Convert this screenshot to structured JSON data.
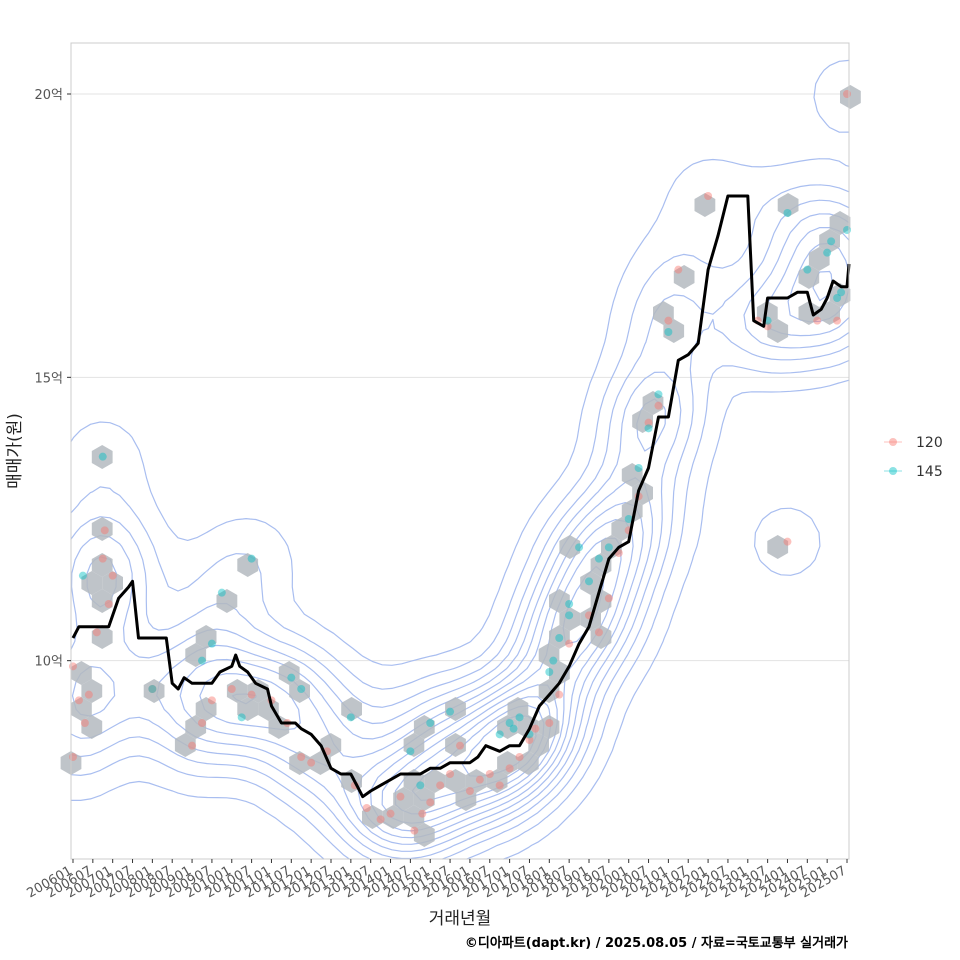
{
  "chart_data": {
    "type": "scatter",
    "xlabel": "거래년월",
    "ylabel": "매매가(원)",
    "x_tick_labels": [
      "200601",
      "200607",
      "200701",
      "200707",
      "200801",
      "200807",
      "200901",
      "200907",
      "201001",
      "201007",
      "201101",
      "201107",
      "201201",
      "201207",
      "201301",
      "201307",
      "201401",
      "201407",
      "201501",
      "201507",
      "201601",
      "201607",
      "201701",
      "201707",
      "201801",
      "201807",
      "201901",
      "201907",
      "202001",
      "202007",
      "202101",
      "202107",
      "202201",
      "202207",
      "202301",
      "202307",
      "202401",
      "202407",
      "202501",
      "202507"
    ],
    "y_ticks": [
      {
        "value": 10,
        "label": "10억"
      },
      {
        "value": 15,
        "label": "15억"
      },
      {
        "value": 20,
        "label": "20억"
      }
    ],
    "xlim": [
      -0.1,
      39.1
    ],
    "ylim": [
      6.5,
      20.9
    ],
    "grid": "horizontal major lines",
    "legend_position": "right",
    "colors": {
      "s120": "#F8766D",
      "s145": "#00BFC4",
      "trend": "#000000",
      "hex": "#B4BAC0",
      "contour": "#A9BEF0",
      "grid": "#E3E3E3",
      "frame": "#CCCCCC"
    },
    "series": [
      {
        "name": "120",
        "color": "#F8766D",
        "points": [
          [
            0,
            8.3
          ],
          [
            0,
            9.9
          ],
          [
            0.3,
            9.3
          ],
          [
            0.6,
            8.9
          ],
          [
            0.8,
            9.4
          ],
          [
            1.2,
            10.5
          ],
          [
            1.5,
            11.8
          ],
          [
            1.6,
            12.3
          ],
          [
            1.8,
            11.0
          ],
          [
            2,
            11.5
          ],
          [
            4,
            9.5
          ],
          [
            6,
            8.5
          ],
          [
            6.5,
            8.9
          ],
          [
            7,
            9.3
          ],
          [
            8,
            9.5
          ],
          [
            9,
            9.4
          ],
          [
            10,
            9.3
          ],
          [
            10.8,
            8.9
          ],
          [
            11.5,
            8.3
          ],
          [
            12,
            8.2
          ],
          [
            12.8,
            8.4
          ],
          [
            14.2,
            7.8
          ],
          [
            14.8,
            7.4
          ],
          [
            15.5,
            7.2
          ],
          [
            16,
            7.3
          ],
          [
            16.5,
            7.6
          ],
          [
            17.2,
            7.0
          ],
          [
            17.6,
            7.3
          ],
          [
            18,
            7.5
          ],
          [
            18.5,
            7.8
          ],
          [
            19,
            8.0
          ],
          [
            19.5,
            8.5
          ],
          [
            20,
            7.7
          ],
          [
            20.5,
            7.9
          ],
          [
            21,
            8.0
          ],
          [
            21.5,
            7.8
          ],
          [
            22,
            8.1
          ],
          [
            22.5,
            8.3
          ],
          [
            23,
            8.6
          ],
          [
            23.3,
            8.8
          ],
          [
            24,
            8.9
          ],
          [
            24.5,
            9.4
          ],
          [
            25,
            10.3
          ],
          [
            26,
            10.8
          ],
          [
            26.5,
            10.5
          ],
          [
            27,
            11.1
          ],
          [
            27.5,
            11.9
          ],
          [
            28,
            12.3
          ],
          [
            28.5,
            12.9
          ],
          [
            29,
            14.2
          ],
          [
            29.5,
            14.5
          ],
          [
            30,
            16.0
          ],
          [
            30.5,
            16.9
          ],
          [
            32,
            18.2
          ],
          [
            34.5,
            16.0
          ],
          [
            35,
            15.9
          ],
          [
            36,
            12.1
          ],
          [
            37.5,
            16.0
          ],
          [
            38.5,
            16.0
          ],
          [
            39,
            20.0
          ]
        ]
      },
      {
        "name": "145",
        "color": "#00BFC4",
        "points": [
          [
            0.5,
            11.5
          ],
          [
            1.5,
            13.6
          ],
          [
            4,
            9.5
          ],
          [
            6.5,
            10.0
          ],
          [
            7,
            10.3
          ],
          [
            7.5,
            11.2
          ],
          [
            8.5,
            9.0
          ],
          [
            9,
            11.8
          ],
          [
            11,
            9.7
          ],
          [
            11.5,
            9.5
          ],
          [
            14,
            9.0
          ],
          [
            17,
            8.4
          ],
          [
            17.5,
            7.8
          ],
          [
            18,
            8.9
          ],
          [
            19,
            9.1
          ],
          [
            21.5,
            8.7
          ],
          [
            22,
            8.9
          ],
          [
            22.2,
            8.8
          ],
          [
            22.5,
            9.0
          ],
          [
            23,
            8.7
          ],
          [
            24,
            9.8
          ],
          [
            24.2,
            10.0
          ],
          [
            24.5,
            10.4
          ],
          [
            25,
            10.8
          ],
          [
            25,
            11.0
          ],
          [
            25.5,
            12.0
          ],
          [
            26,
            11.4
          ],
          [
            26.5,
            11.8
          ],
          [
            27,
            12.0
          ],
          [
            28,
            12.5
          ],
          [
            28.5,
            13.4
          ],
          [
            29,
            14.1
          ],
          [
            29.5,
            14.7
          ],
          [
            30,
            15.8
          ],
          [
            35,
            16.0
          ],
          [
            36,
            17.9
          ],
          [
            37,
            16.9
          ],
          [
            38,
            17.2
          ],
          [
            38.2,
            17.4
          ],
          [
            38.5,
            16.4
          ],
          [
            38.7,
            16.5
          ],
          [
            39,
            17.6
          ]
        ]
      },
      {
        "name": "trend",
        "color": "#000000",
        "points": [
          [
            0,
            10.4
          ],
          [
            0.3,
            10.6
          ],
          [
            1,
            10.6
          ],
          [
            1.8,
            10.6
          ],
          [
            2,
            10.8
          ],
          [
            2.3,
            11.1
          ],
          [
            2.8,
            11.3
          ],
          [
            3,
            11.4
          ],
          [
            3.3,
            10.4
          ],
          [
            3.5,
            10.4
          ],
          [
            4.7,
            10.4
          ],
          [
            5,
            9.6
          ],
          [
            5.3,
            9.5
          ],
          [
            5.6,
            9.7
          ],
          [
            6,
            9.6
          ],
          [
            7,
            9.6
          ],
          [
            7.4,
            9.8
          ],
          [
            8,
            9.9
          ],
          [
            8.2,
            10.1
          ],
          [
            8.4,
            9.9
          ],
          [
            8.8,
            9.8
          ],
          [
            9.2,
            9.6
          ],
          [
            9.8,
            9.5
          ],
          [
            10,
            9.2
          ],
          [
            10.5,
            8.9
          ],
          [
            11.2,
            8.9
          ],
          [
            11.5,
            8.8
          ],
          [
            12,
            8.7
          ],
          [
            12.5,
            8.5
          ],
          [
            13,
            8.1
          ],
          [
            13.5,
            8.0
          ],
          [
            14,
            8.0
          ],
          [
            14.3,
            7.8
          ],
          [
            14.6,
            7.6
          ],
          [
            15,
            7.7
          ],
          [
            15.5,
            7.8
          ],
          [
            16,
            7.9
          ],
          [
            16.5,
            8.0
          ],
          [
            17,
            8.0
          ],
          [
            17.5,
            8.0
          ],
          [
            18,
            8.1
          ],
          [
            18.5,
            8.1
          ],
          [
            19,
            8.2
          ],
          [
            19.5,
            8.2
          ],
          [
            20,
            8.2
          ],
          [
            20.4,
            8.3
          ],
          [
            20.8,
            8.5
          ],
          [
            21.5,
            8.4
          ],
          [
            22,
            8.5
          ],
          [
            22.5,
            8.5
          ],
          [
            23,
            8.8
          ],
          [
            23.5,
            9.2
          ],
          [
            24,
            9.4
          ],
          [
            24.5,
            9.6
          ],
          [
            25,
            9.9
          ],
          [
            25.5,
            10.3
          ],
          [
            26,
            10.6
          ],
          [
            26.5,
            11.2
          ],
          [
            27,
            11.8
          ],
          [
            27.5,
            12.0
          ],
          [
            28,
            12.1
          ],
          [
            28.5,
            13.0
          ],
          [
            29,
            13.4
          ],
          [
            29.5,
            14.3
          ],
          [
            30,
            14.3
          ],
          [
            30.5,
            15.3
          ],
          [
            31,
            15.4
          ],
          [
            31.5,
            15.6
          ],
          [
            32,
            16.9
          ],
          [
            32.5,
            17.5
          ],
          [
            33,
            18.2
          ],
          [
            33.5,
            18.2
          ],
          [
            34,
            18.2
          ],
          [
            34.3,
            16.0
          ],
          [
            34.8,
            15.9
          ],
          [
            35,
            16.4
          ],
          [
            36,
            16.4
          ],
          [
            36.5,
            16.5
          ],
          [
            37,
            16.5
          ],
          [
            37.3,
            16.1
          ],
          [
            37.7,
            16.2
          ],
          [
            38,
            16.4
          ],
          [
            38.3,
            16.7
          ],
          [
            38.7,
            16.6
          ],
          [
            39,
            16.6
          ],
          [
            39.1,
            17.0
          ]
        ]
      }
    ]
  },
  "legend": {
    "items": [
      {
        "label": "120",
        "color": "#F8766D"
      },
      {
        "label": "145",
        "color": "#00BFC4"
      }
    ]
  },
  "caption": "©디아파트(dapt.kr) / 2025.08.05 / 자료=국토교통부 실거래가"
}
